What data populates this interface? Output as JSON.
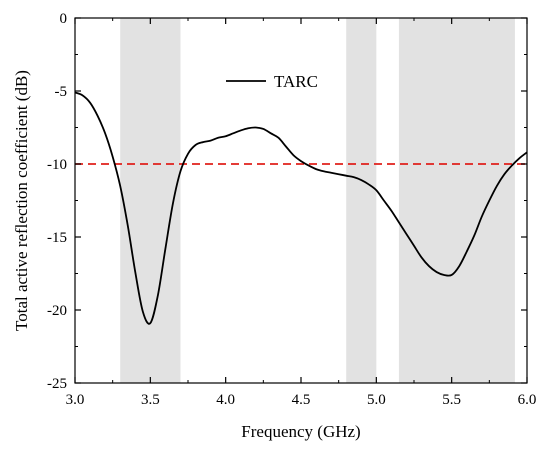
{
  "chart_data": {
    "type": "line",
    "title": "",
    "xlabel": "Frequency (GHz)",
    "ylabel": "Total active reflection coefficient (dB)",
    "xlim": [
      3.0,
      6.0
    ],
    "ylim": [
      -25,
      0
    ],
    "x_ticks": [
      3.0,
      3.5,
      4.0,
      4.5,
      5.0,
      5.5,
      6.0
    ],
    "x_tick_labels": [
      "3.0",
      "3.5",
      "4.0",
      "4.5",
      "5.0",
      "5.5",
      "6.0"
    ],
    "y_ticks": [
      0,
      -5,
      -10,
      -15,
      -20,
      -25
    ],
    "y_tick_labels": [
      "0",
      "-5",
      "-10",
      "-15",
      "-20",
      "-25"
    ],
    "grid": false,
    "legend_position": "top-center",
    "shaded_bands": [
      [
        3.3,
        3.7
      ],
      [
        4.8,
        5.0
      ],
      [
        5.15,
        5.92
      ]
    ],
    "reference_line": {
      "y": -10,
      "color": "#e0201b",
      "style": "dashed"
    },
    "series": [
      {
        "name": "TARC",
        "color": "#000000",
        "x": [
          3.0,
          3.05,
          3.1,
          3.15,
          3.2,
          3.25,
          3.3,
          3.35,
          3.4,
          3.45,
          3.5,
          3.55,
          3.6,
          3.65,
          3.7,
          3.75,
          3.8,
          3.85,
          3.9,
          3.95,
          4.0,
          4.05,
          4.1,
          4.15,
          4.2,
          4.25,
          4.3,
          4.35,
          4.4,
          4.45,
          4.5,
          4.55,
          4.6,
          4.65,
          4.7,
          4.75,
          4.8,
          4.85,
          4.9,
          4.95,
          5.0,
          5.05,
          5.1,
          5.15,
          5.2,
          5.25,
          5.3,
          5.35,
          5.4,
          5.45,
          5.5,
          5.55,
          5.6,
          5.65,
          5.7,
          5.75,
          5.8,
          5.85,
          5.9,
          5.95,
          6.0
        ],
        "values": [
          -5.1,
          -5.3,
          -5.8,
          -6.7,
          -7.9,
          -9.5,
          -11.5,
          -14.2,
          -17.4,
          -20.1,
          -20.9,
          -19.0,
          -15.8,
          -12.7,
          -10.5,
          -9.3,
          -8.7,
          -8.5,
          -8.4,
          -8.2,
          -8.1,
          -7.9,
          -7.7,
          -7.55,
          -7.5,
          -7.6,
          -7.9,
          -8.2,
          -8.8,
          -9.4,
          -9.8,
          -10.1,
          -10.35,
          -10.5,
          -10.6,
          -10.7,
          -10.8,
          -10.9,
          -11.1,
          -11.4,
          -11.8,
          -12.5,
          -13.2,
          -14.0,
          -14.8,
          -15.6,
          -16.4,
          -17.0,
          -17.4,
          -17.6,
          -17.6,
          -17.0,
          -16.0,
          -14.9,
          -13.6,
          -12.5,
          -11.5,
          -10.7,
          -10.1,
          -9.6,
          -9.2
        ]
      }
    ]
  }
}
